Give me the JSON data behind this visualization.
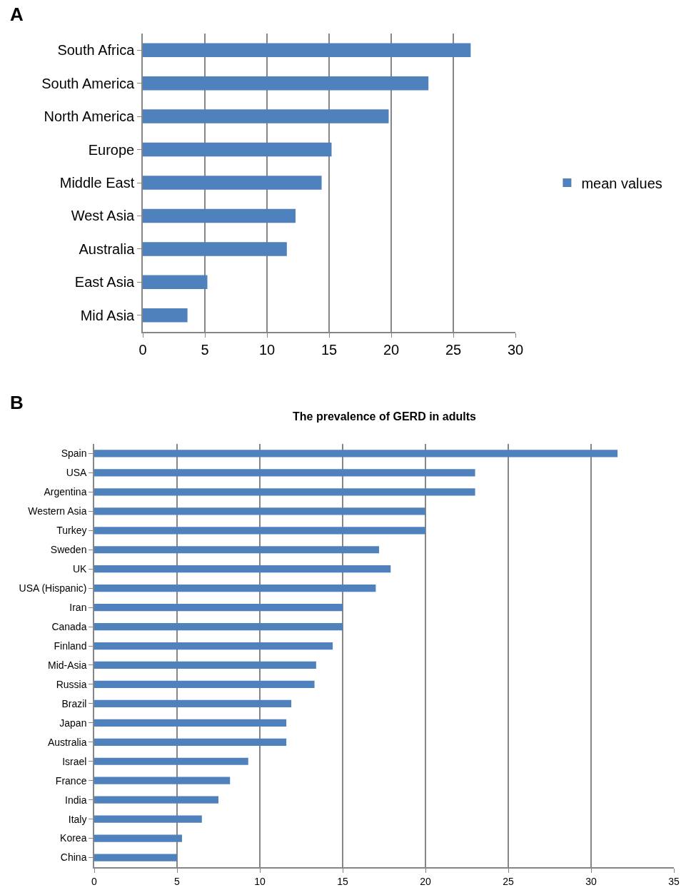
{
  "chart_data": [
    {
      "type": "bar",
      "orientation": "horizontal",
      "categories": [
        "South Africa",
        "South America",
        "North America",
        "Europe",
        "Middle East",
        "West Asia",
        "Australia",
        "East Asia",
        "Mid Asia"
      ],
      "series": [
        {
          "name": "mean values",
          "color": "#4f81bd",
          "values": [
            26.4,
            23.0,
            19.8,
            15.2,
            14.4,
            12.3,
            11.6,
            5.2,
            3.6
          ]
        }
      ],
      "xlim": [
        0,
        30
      ],
      "xticks": [
        0,
        5,
        10,
        15,
        20,
        25,
        30
      ],
      "grid": "x",
      "legend": "right",
      "annotations": [
        "A"
      ]
    },
    {
      "type": "bar",
      "orientation": "horizontal",
      "title": "The prevalence of GERD in adults",
      "categories": [
        "Spain",
        "USA",
        "Argentina",
        "Western Asia",
        "Turkey",
        "Sweden",
        "UK",
        "USA (Hispanic)",
        "Iran",
        "Canada",
        "Finland",
        "Mid-Asia",
        "Russia",
        "Brazil",
        "Japan",
        "Australia",
        "Israel",
        "France",
        "India",
        "Italy",
        "Korea",
        "China"
      ],
      "series": [
        {
          "color": "#4f81bd",
          "values": [
            31.6,
            23.0,
            23.0,
            20.0,
            20.0,
            17.2,
            17.9,
            17.0,
            15.0,
            15.0,
            14.4,
            13.4,
            13.3,
            11.9,
            11.6,
            11.6,
            9.3,
            8.2,
            7.5,
            6.5,
            5.3,
            5.0
          ]
        }
      ],
      "xlim": [
        0,
        35
      ],
      "xticks": [
        0,
        5,
        10,
        15,
        20,
        25,
        30,
        35
      ],
      "grid": "x",
      "legend": false,
      "annotations": [
        "B"
      ]
    }
  ]
}
